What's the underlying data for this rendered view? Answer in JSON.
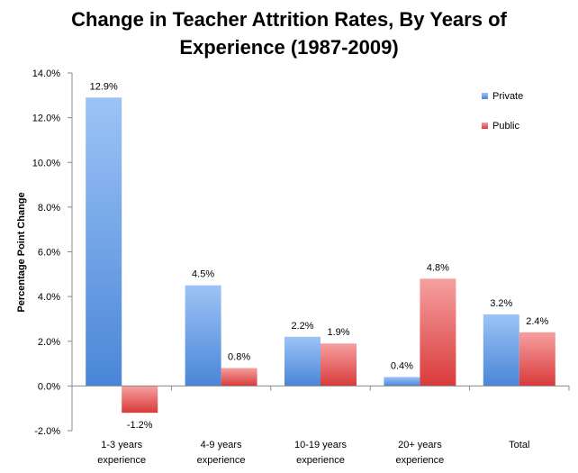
{
  "chart_data": {
    "type": "bar",
    "title": "Change in Teacher Attrition Rates, By Years of\nExperience (1987-2009)",
    "xlabel": "",
    "ylabel": "Percentage Point Change",
    "categories": [
      "1-3 years\nexperience",
      "4-9 years\nexperience",
      "10-19 years\nexperience",
      "20+ years\nexperience",
      "Total"
    ],
    "series": [
      {
        "name": "Private",
        "values": [
          12.9,
          4.5,
          2.2,
          0.4,
          3.2
        ],
        "labels": [
          "12.9%",
          "4.5%",
          "2.2%",
          "0.4%",
          "3.2%"
        ],
        "color": "#4a86d8",
        "color_light": "#9cc3f6"
      },
      {
        "name": "Public",
        "values": [
          -1.2,
          0.8,
          1.9,
          4.8,
          2.4
        ],
        "labels": [
          "-1.2%",
          "0.8%",
          "1.9%",
          "4.8%",
          "2.4%"
        ],
        "color": "#d93a3a",
        "color_light": "#f6a0a0"
      }
    ],
    "ylim": [
      -2.0,
      14.0
    ],
    "yticks": [
      14.0,
      12.0,
      10.0,
      8.0,
      6.0,
      4.0,
      2.0,
      0.0,
      -2.0
    ],
    "ytick_labels": [
      "14.0%",
      "12.0%",
      "10.0%",
      "8.0%",
      "6.0%",
      "4.0%",
      "2.0%",
      "0.0%",
      "-2.0%"
    ],
    "grid": false,
    "legend_position": "top-right"
  }
}
